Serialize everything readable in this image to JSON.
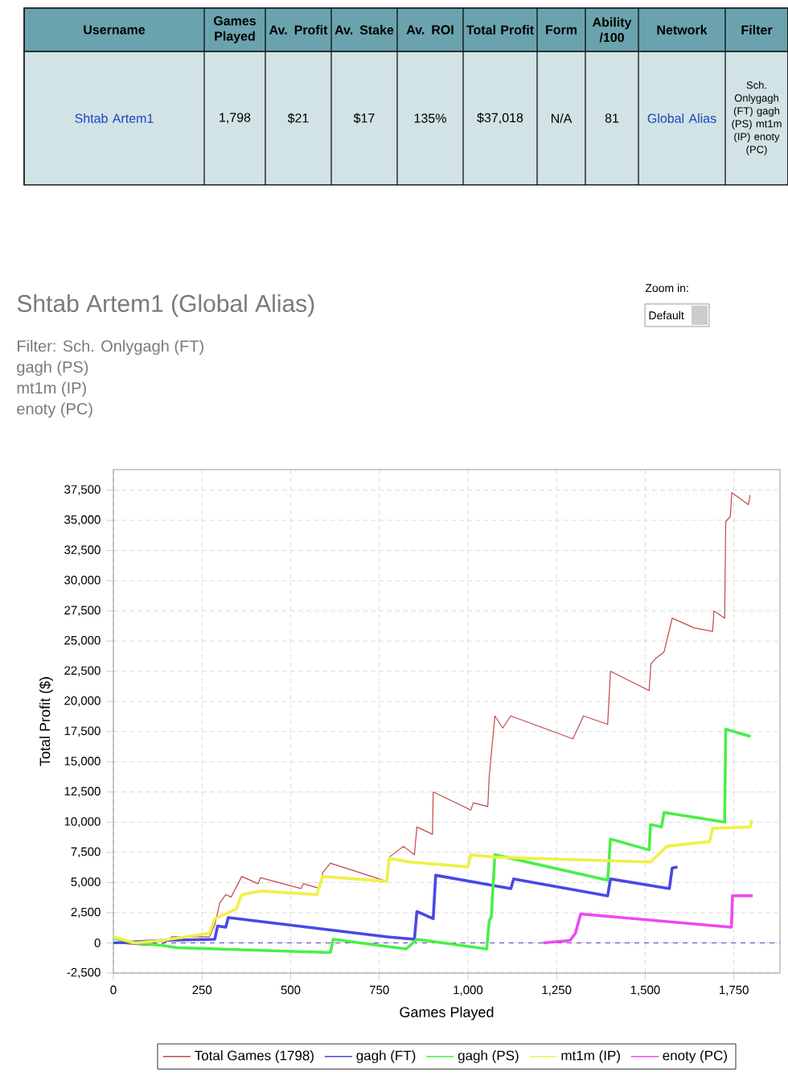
{
  "chart_data": {
    "type": "line",
    "title": "Shtab Artem1 (Global Alias)",
    "subtitle": "Filter: Sch. Onlygagh (FT)",
    "xlabel": "Games Played",
    "ylabel": "Total Profit ($)",
    "annotations": [
      "Username",
      "Games Played",
      "Av. Profit",
      "Av. Stake",
      "Av. ROI",
      "Total Profit",
      "Form",
      "Ability /100",
      "Network",
      "Filter",
      "Shtab Artem1",
      "1,798",
      "$21",
      "$17",
      "135%",
      "$37,018",
      "N/A",
      "81",
      "Global Alias",
      "Sch. Onlygagh (FT) gagh (PS) mt1m (IP) enoty (PC)",
      "gagh (PS)",
      "mt1m (IP)",
      "enoty (PC)",
      "Zoom in:",
      "Default"
    ],
    "xlim": [
      0,
      1880
    ],
    "ylim": [
      -2500,
      39200
    ],
    "xticks": [
      0,
      250,
      500,
      750,
      {
        "value": 1000,
        "label": "1,000"
      },
      {
        "value": 1250,
        "label": "1,250"
      },
      {
        "value": 1500,
        "label": "1,500"
      },
      {
        "value": 1750,
        "label": "1,750"
      }
    ],
    "yticks": [
      {
        "value": -2500,
        "label": "-2,500"
      },
      0,
      {
        "value": 2500,
        "label": "2,500"
      },
      {
        "value": 5000,
        "label": "5,000"
      },
      {
        "value": 7500,
        "label": "7,500"
      },
      {
        "value": 10000,
        "label": "10,000"
      },
      {
        "value": 12500,
        "label": "12,500"
      },
      {
        "value": 15000,
        "label": "15,000"
      },
      {
        "value": 17500,
        "label": "17,500"
      },
      {
        "value": 20000,
        "label": "20,000"
      },
      {
        "value": 22500,
        "label": "22,500"
      },
      {
        "value": 25000,
        "label": "25,000"
      },
      {
        "value": 27500,
        "label": "27,500"
      },
      {
        "value": 30000,
        "label": "30,000"
      },
      {
        "value": 32500,
        "label": "32,500"
      },
      {
        "value": 35000,
        "label": "35,000"
      },
      {
        "value": 37500,
        "label": "37,500"
      }
    ],
    "grid": true,
    "legend": "bottom",
    "marker": "none",
    "line_style": "solid",
    "ref_lines": [
      {
        "axis": "y",
        "value": 0,
        "color": "#6040c0",
        "line_style": "dashed"
      }
    ],
    "series": [
      {
        "name": "Total Games (1798)",
        "color": "#c04848",
        "x": [
          0,
          90,
          135,
          165,
          271,
          286,
          300,
          317,
          332,
          362,
          408,
          415,
          529,
          536,
          582,
          590,
          612,
          771,
          778,
          818,
          849,
          856,
          900,
          902,
          1008,
          1015,
          1056,
          1060,
          1076,
          1098,
          1121,
          1296,
          1326,
          1394,
          1402,
          1511,
          1516,
          1531,
          1553,
          1576,
          1637,
          1690,
          1694,
          1724,
          1727,
          1740,
          1744,
          1791,
          1796
        ],
        "values": [
          0,
          -200,
          -200,
          500,
          500,
          1500,
          3300,
          4000,
          3800,
          5500,
          4900,
          5400,
          4500,
          4900,
          4500,
          5800,
          6600,
          5100,
          7100,
          8000,
          7300,
          9600,
          9000,
          12500,
          11000,
          11600,
          11300,
          13800,
          18800,
          17800,
          18800,
          16900,
          18800,
          18100,
          22500,
          20900,
          23100,
          23600,
          24100,
          26900,
          26100,
          25800,
          27500,
          26900,
          34900,
          35300,
          37300,
          36300,
          37100
        ]
      },
      {
        "name": "gagh (FT)",
        "color": "#4848e8",
        "x": [
          0,
          135,
          286,
          294,
          317,
          324,
          773,
          849,
          856,
          902,
          909,
          1121,
          1129,
          1394,
          1402,
          1568,
          1576,
          1591
        ],
        "values": [
          0,
          200,
          300,
          1400,
          1300,
          2100,
          500,
          300,
          2600,
          2000,
          5600,
          4500,
          5300,
          3900,
          5300,
          4500,
          6200,
          6300
        ]
      },
      {
        "name": "gagh (PS)",
        "color": "#48f048",
        "x": [
          0,
          60,
          135,
          180,
          612,
          620,
          773,
          826,
          856,
          1053,
          1060,
          1066,
          1076,
          1394,
          1402,
          1511,
          1515,
          1546,
          1553,
          1724,
          1727,
          1797
        ],
        "values": [
          400,
          0,
          -200,
          -400,
          -800,
          300,
          -300,
          -500,
          300,
          -500,
          1800,
          2200,
          7300,
          5200,
          8600,
          7700,
          9800,
          9600,
          10800,
          10000,
          17700,
          17100
        ]
      },
      {
        "name": "mt1m (IP)",
        "color": "#f0f048",
        "x": [
          0,
          60,
          135,
          271,
          286,
          347,
          362,
          415,
          574,
          590,
          771,
          778,
          834,
          1000,
          1008,
          1076,
          1515,
          1561,
          1682,
          1690,
          1796,
          1800
        ],
        "values": [
          500,
          0,
          200,
          800,
          2000,
          2800,
          4000,
          4300,
          4000,
          5500,
          5100,
          7000,
          6700,
          6300,
          7300,
          7100,
          6700,
          8000,
          8400,
          9500,
          9600,
          10200
        ]
      },
      {
        "name": "enoty (PC)",
        "color": "#f048f0",
        "x": [
          1212,
          1288,
          1303,
          1318,
          1743,
          1746,
          1803
        ],
        "values": [
          0,
          200,
          800,
          2400,
          1300,
          3900,
          3900
        ]
      }
    ]
  }
}
